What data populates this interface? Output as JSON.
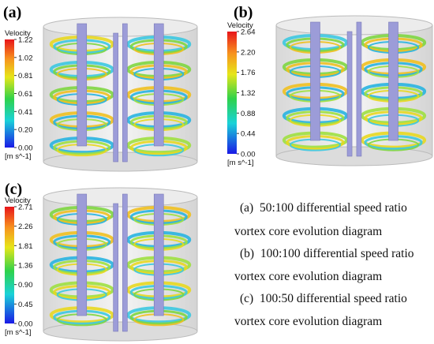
{
  "panels": [
    {
      "label": "(a)",
      "colorbar_title": "Velocity",
      "ticks": [
        "1.22",
        "1.02",
        "0.81",
        "0.61",
        "0.41",
        "0.20",
        "0.00"
      ],
      "unit": "[m s^-1]"
    },
    {
      "label": "(b)",
      "colorbar_title": "Velocity",
      "ticks": [
        "2.64",
        "2.20",
        "1.76",
        "1.32",
        "0.88",
        "0.44",
        "0.00"
      ],
      "unit": "[m s^-1]"
    },
    {
      "label": "(c)",
      "colorbar_title": "Velocity",
      "ticks": [
        "2.71",
        "2.26",
        "1.81",
        "1.36",
        "0.90",
        "0.45",
        "0.00"
      ],
      "unit": "[m s^-1]"
    }
  ],
  "caption": [
    "(a)  50:100 differential speed ratio",
    "vortex core evolution diagram",
    "(b)  100:100 differential speed ratio",
    "vortex core evolution diagram",
    "(c)  100:50 differential speed ratio",
    "vortex core evolution diagram"
  ]
}
